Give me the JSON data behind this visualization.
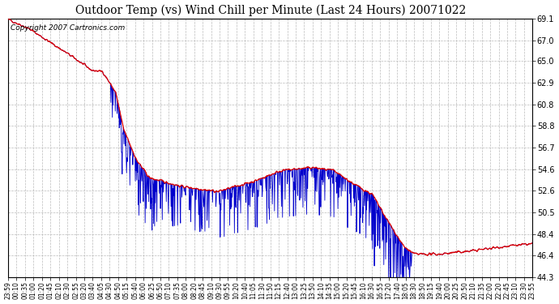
{
  "title": "Outdoor Temp (vs) Wind Chill per Minute (Last 24 Hours) 20071022",
  "copyright_text": "Copyright 2007 Cartronics.com",
  "background_color": "#ffffff",
  "plot_bg_color": "#ffffff",
  "grid_color": "#bbbbbb",
  "temp_color": "#dd0000",
  "wind_chill_color": "#0000cc",
  "ymin": 44.3,
  "ymax": 69.1,
  "yticks": [
    44.3,
    46.4,
    48.4,
    50.5,
    52.6,
    54.6,
    56.7,
    58.8,
    60.8,
    62.9,
    65.0,
    67.0,
    69.1
  ],
  "x_labels": [
    "23:59",
    "00:10",
    "00:35",
    "01:00",
    "01:20",
    "01:45",
    "02:10",
    "02:30",
    "02:55",
    "03:20",
    "03:40",
    "04:05",
    "04:30",
    "04:50",
    "05:15",
    "05:40",
    "06:00",
    "06:25",
    "06:50",
    "07:10",
    "07:35",
    "08:00",
    "08:20",
    "08:45",
    "09:10",
    "09:30",
    "09:55",
    "10:20",
    "10:40",
    "11:05",
    "11:30",
    "11:50",
    "12:15",
    "12:40",
    "13:00",
    "13:25",
    "13:50",
    "14:10",
    "14:35",
    "15:00",
    "15:20",
    "15:45",
    "16:10",
    "16:30",
    "16:55",
    "17:20",
    "17:40",
    "18:05",
    "18:30",
    "18:50",
    "19:15",
    "19:40",
    "20:00",
    "20:25",
    "20:50",
    "21:10",
    "21:35",
    "22:00",
    "22:20",
    "22:45",
    "23:10",
    "23:30",
    "23:55"
  ],
  "num_points": 1440,
  "seed": 42,
  "title_fontsize": 10,
  "copyright_fontsize": 6.5,
  "ytick_fontsize": 7,
  "xtick_fontsize": 5.5
}
